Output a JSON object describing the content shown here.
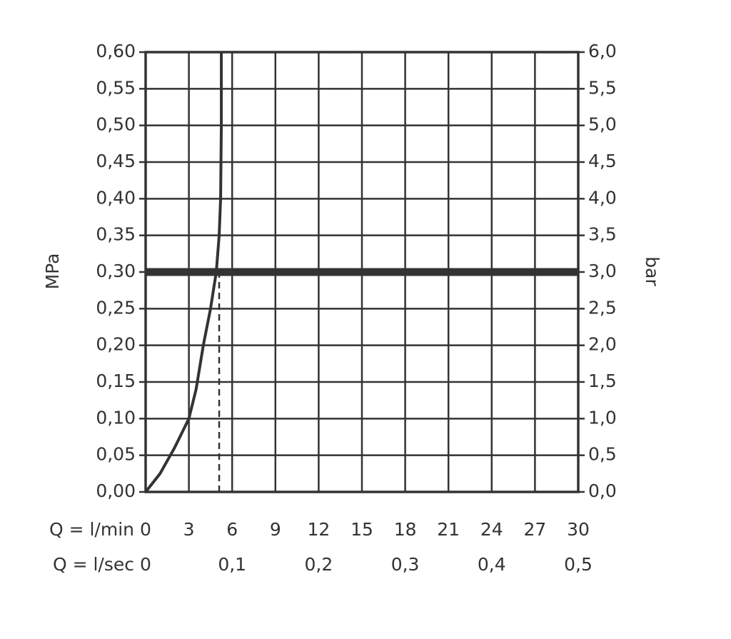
{
  "chart_data": {
    "type": "line",
    "y_label": "MPa",
    "y2_label": "bar",
    "x_label": "Q = l/min",
    "x2_label": "Q = l/sec",
    "xlim": [
      0,
      30
    ],
    "xticks": [
      0,
      3,
      6,
      9,
      12,
      15,
      18,
      21,
      24,
      27,
      30
    ],
    "x2lim": [
      0,
      0.5
    ],
    "x2ticks": [
      0,
      {
        "value": 0.1,
        "label": "0,1"
      },
      {
        "value": 0.2,
        "label": "0,2"
      },
      {
        "value": 0.3,
        "label": "0,3"
      },
      {
        "value": 0.4,
        "label": "0,4"
      },
      {
        "value": 0.5,
        "label": "0,5"
      }
    ],
    "ylim": [
      0,
      0.6
    ],
    "yticks": [
      {
        "value": 0,
        "label": "0,00"
      },
      {
        "value": 0.05,
        "label": "0,05"
      },
      {
        "value": 0.1,
        "label": "0,10"
      },
      {
        "value": 0.15,
        "label": "0,15"
      },
      {
        "value": 0.2,
        "label": "0,20"
      },
      {
        "value": 0.25,
        "label": "0,25"
      },
      {
        "value": 0.3,
        "label": "0,30"
      },
      {
        "value": 0.35,
        "label": "0,35"
      },
      {
        "value": 0.4,
        "label": "0,40"
      },
      {
        "value": 0.45,
        "label": "0,45"
      },
      {
        "value": 0.5,
        "label": "0,50"
      },
      {
        "value": 0.55,
        "label": "0,55"
      },
      {
        "value": 0.6,
        "label": "0,60"
      }
    ],
    "y2lim": [
      0,
      6
    ],
    "y2ticks": [
      {
        "value": 0,
        "label": "0,0"
      },
      {
        "value": 0.5,
        "label": "0,5"
      },
      {
        "value": 1,
        "label": "1,0"
      },
      {
        "value": 1.5,
        "label": "1,5"
      },
      {
        "value": 2,
        "label": "2,0"
      },
      {
        "value": 2.5,
        "label": "2,5"
      },
      {
        "value": 3,
        "label": "3,0"
      },
      {
        "value": 3.5,
        "label": "3,5"
      },
      {
        "value": 4,
        "label": "4,0"
      },
      {
        "value": 4.5,
        "label": "4,5"
      },
      {
        "value": 5,
        "label": "5,0"
      },
      {
        "value": 5.5,
        "label": "5,5"
      },
      {
        "value": 6,
        "label": "6,0"
      }
    ],
    "grid": true,
    "series": [
      {
        "color": "#333333",
        "x": [
          0,
          1,
          2,
          3,
          3.5,
          4,
          4.5,
          4.9,
          5.1,
          5.2,
          5.25,
          5.25
        ],
        "values": [
          0,
          0.025,
          0.06,
          0.1,
          0.14,
          0.2,
          0.25,
          0.3,
          0.35,
          0.4,
          0.5,
          0.6
        ]
      }
    ],
    "reference_lines": {
      "y": 0.3,
      "x": 5.1
    }
  }
}
